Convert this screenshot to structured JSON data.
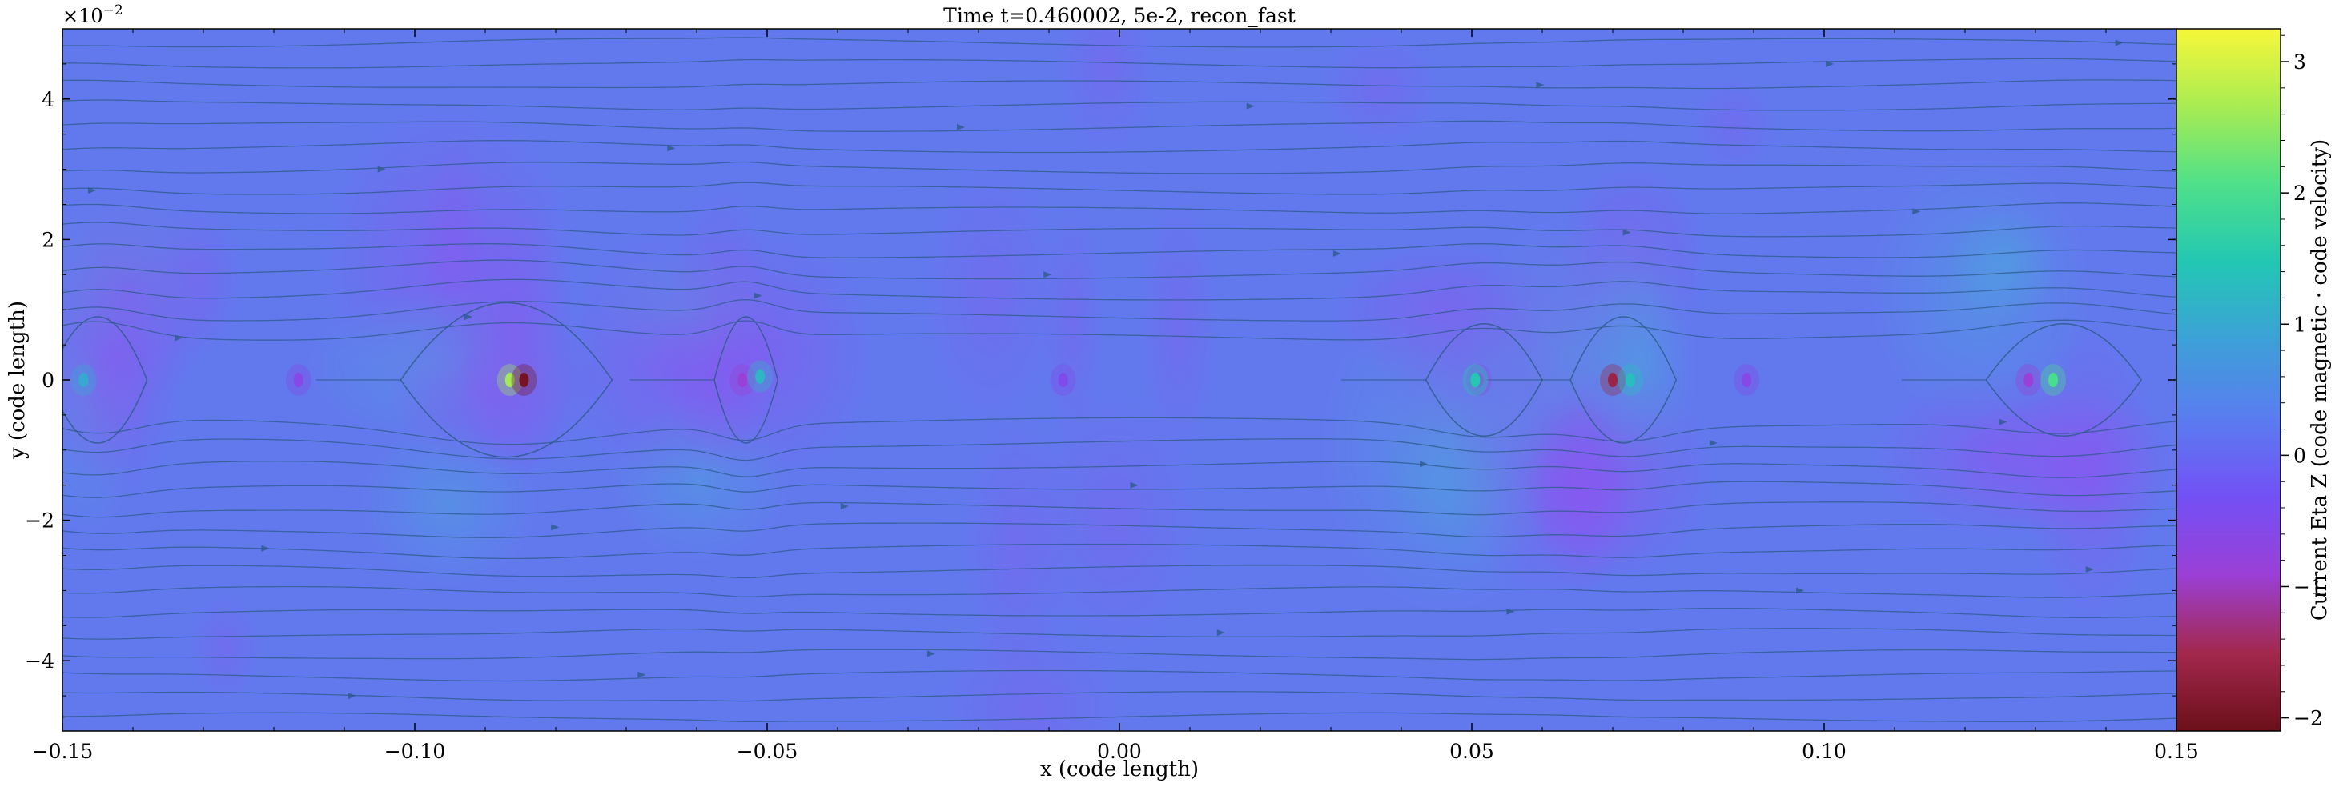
{
  "chart_data": {
    "type": "heatmap",
    "title": "Time t=0.460002, 5e-2, recon_fast",
    "xlabel": "x  (code length)",
    "ylabel": "y  (code length)",
    "xlim": [
      -0.15,
      0.15
    ],
    "ylim": [
      -5,
      5
    ],
    "y_multiplier": "×10",
    "y_multiplier_exp": "−2",
    "x_ticks": [
      {
        "value": -0.15,
        "label": "−0.15"
      },
      {
        "value": -0.1,
        "label": "−0.10"
      },
      {
        "value": -0.05,
        "label": "−0.05"
      },
      {
        "value": 0.0,
        "label": "0.00"
      },
      {
        "value": 0.05,
        "label": "0.05"
      },
      {
        "value": 0.1,
        "label": "0.10"
      },
      {
        "value": 0.15,
        "label": "0.15"
      }
    ],
    "y_ticks": [
      {
        "value": -4,
        "label": "−4"
      },
      {
        "value": -2,
        "label": "−2"
      },
      {
        "value": 0,
        "label": "0"
      },
      {
        "value": 2,
        "label": "2"
      },
      {
        "value": 4,
        "label": "4"
      }
    ],
    "colorbar": {
      "label": "Current Eta Z  (code magnetic · code velocity)",
      "range": [
        -2.1,
        3.25
      ],
      "colormap": [
        "#6b0f1a",
        "#a3284d",
        "#9b3fd6",
        "#7350f5",
        "#5a7cf0",
        "#3da0d8",
        "#22c7b4",
        "#4ee08a",
        "#a8ec52",
        "#f7f739"
      ],
      "ticks": [
        {
          "value": -2,
          "label": "−2"
        },
        {
          "value": -1,
          "label": "−1"
        },
        {
          "value": 0,
          "label": "0"
        },
        {
          "value": 1,
          "label": "1"
        },
        {
          "value": 2,
          "label": "2"
        },
        {
          "value": 3,
          "label": "3"
        }
      ]
    },
    "background_value": 0.3,
    "background_color": "#6279ee",
    "streamline_color": "#2d5a8a",
    "hotspots": [
      {
        "x": -0.147,
        "y": 0.0,
        "value": 1.0
      },
      {
        "x": -0.1165,
        "y": 0.0,
        "value": -0.6
      },
      {
        "x": -0.0865,
        "y": 0.0,
        "value": 2.6
      },
      {
        "x": -0.0845,
        "y": 0.0,
        "value": -2.0
      },
      {
        "x": -0.0535,
        "y": 0.0,
        "value": -0.9
      },
      {
        "x": -0.051,
        "y": 0.05,
        "value": 1.2
      },
      {
        "x": -0.008,
        "y": 0.0,
        "value": -0.5
      },
      {
        "x": 0.051,
        "y": 0.0,
        "value": -0.7
      },
      {
        "x": 0.0505,
        "y": 0.0,
        "value": 1.5
      },
      {
        "x": 0.07,
        "y": 0.0,
        "value": -1.6
      },
      {
        "x": 0.0725,
        "y": 0.0,
        "value": 1.3
      },
      {
        "x": 0.089,
        "y": 0.0,
        "value": -0.6
      },
      {
        "x": 0.129,
        "y": 0.0,
        "value": -0.9
      },
      {
        "x": 0.1325,
        "y": 0.0,
        "value": 2.0
      }
    ],
    "islands": [
      {
        "x0": -0.152,
        "x1": -0.138,
        "h": 0.9
      },
      {
        "x0": -0.102,
        "x1": -0.072,
        "h": 1.1
      },
      {
        "x0": -0.0575,
        "x1": -0.0485,
        "h": 0.9
      },
      {
        "x0": 0.0435,
        "x1": 0.06,
        "h": 0.8
      },
      {
        "x0": 0.064,
        "x1": 0.079,
        "h": 0.9
      },
      {
        "x0": 0.123,
        "x1": 0.145,
        "h": 0.8
      }
    ],
    "streamline_levels": [
      -4.8,
      -4.5,
      -4.2,
      -3.9,
      -3.6,
      -3.3,
      -3.0,
      -2.7,
      -2.4,
      -2.1,
      -1.8,
      -1.5,
      -1.2,
      -0.9,
      -0.6,
      0.6,
      0.9,
      1.2,
      1.5,
      1.8,
      2.1,
      2.4,
      2.7,
      3.0,
      3.3,
      3.6,
      3.9,
      4.2,
      4.5,
      4.8
    ]
  }
}
